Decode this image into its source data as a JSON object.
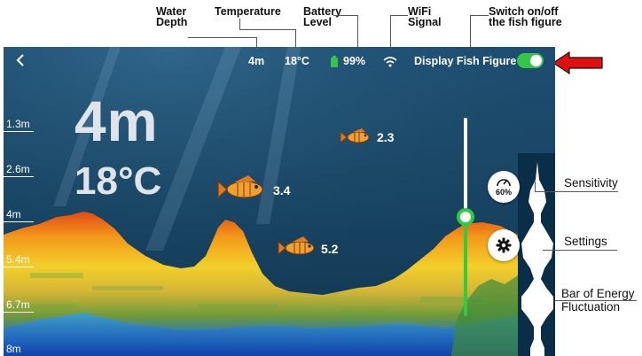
{
  "annotations": {
    "water_depth": "Water\nDepth",
    "temperature": "Temperature",
    "battery_level": "Battery\nLevel",
    "wifi_signal": "WiFi\nSignal",
    "switch_fish": "Switch on/off\nthe fish figure",
    "sensitivity": "Sensitivity",
    "settings": "Settings",
    "energy_bar": "Bar of Energy\nFluctuation"
  },
  "topbar": {
    "depth": "4m",
    "temperature": "18°C",
    "battery": "99%",
    "display_fish_label": "Display Fish Figure",
    "fish_toggle_on": true
  },
  "readout": {
    "depth": "4m",
    "temperature": "18°C"
  },
  "depth_scale": [
    "1.3m",
    "2.6m",
    "4m",
    "5.4m",
    "6.7m",
    "8m"
  ],
  "fish": [
    {
      "depth": "2.3"
    },
    {
      "depth": "3.4"
    },
    {
      "depth": "5.2"
    }
  ],
  "sensitivity": {
    "value": "60%",
    "level": 0.6
  },
  "colors": {
    "accent_toggle": "#35c548",
    "slider_green": "#2ecc40",
    "arrow_red": "#e01010",
    "water_top": "#1e4f73",
    "water_bottom": "#12374f"
  },
  "icons": [
    "back-icon",
    "battery-icon",
    "wifi-icon",
    "gauge-icon",
    "gear-icon",
    "fish-icon",
    "right-arrow-icon"
  ]
}
